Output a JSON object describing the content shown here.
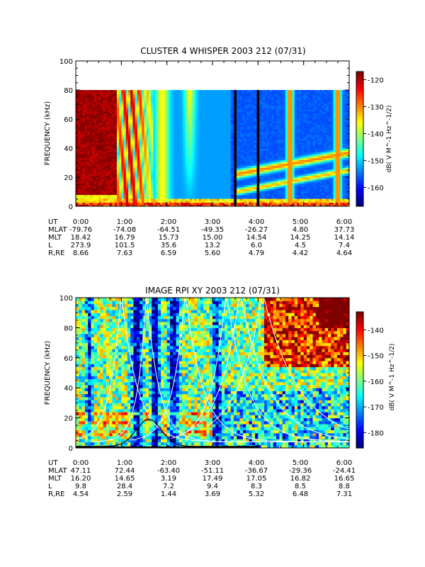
{
  "chart_data": [
    {
      "type": "heatmap",
      "title": "CLUSTER 4 WHISPER 2003 212 (07/31)",
      "ylabel": "FREQUENCY (kHz)",
      "ylim": [
        0,
        100
      ],
      "y_ticks": [
        "0",
        "20",
        "40",
        "60",
        "80",
        "100"
      ],
      "x_ticks": [
        "0:00",
        "1:00",
        "2:00",
        "3:00",
        "4:00",
        "5:00",
        "6:00"
      ],
      "data_top_khz": 80,
      "colorbar": {
        "label": "dB( V M^-1 Hz^-1/2)",
        "ticks": [
          "-120",
          "-130",
          "-140",
          "-150",
          "-160"
        ],
        "range": [
          -167,
          -117
        ]
      },
      "marker_times_hours": [
        3.5,
        4.0
      ],
      "ephemeris": {
        "labels": [
          "UT",
          "MLAT",
          "MLT",
          "L",
          "R,RE"
        ],
        "columns": [
          [
            "0:00",
            "-79.76",
            "18.42",
            "273.9",
            "8.66"
          ],
          [
            "1:00",
            "-74.08",
            "16.79",
            "101.5",
            "7.63"
          ],
          [
            "2:00",
            "-64.51",
            "15.73",
            "35.6",
            "6.59"
          ],
          [
            "3:00",
            "-49.35",
            "15.00",
            "13.2",
            "5.60"
          ],
          [
            "4:00",
            "-26.27",
            "14.54",
            "6.0",
            "4.79"
          ],
          [
            "5:00",
            "4.80",
            "14.25",
            "4.5",
            "4.42"
          ],
          [
            "6:00",
            "37.73",
            "14.14",
            "7.4",
            "4.64"
          ]
        ]
      }
    },
    {
      "type": "heatmap",
      "title": "IMAGE RPI XY 2003 212 (07/31)",
      "ylabel": "FREQUENCY (kHz)",
      "ylim": [
        0,
        100
      ],
      "y_ticks": [
        "0",
        "20",
        "40",
        "60",
        "80",
        "100"
      ],
      "x_ticks": [
        "0:00",
        "1:00",
        "2:00",
        "3:00",
        "4:00",
        "5:00",
        "6:00"
      ],
      "colorbar": {
        "label": "dB( V M^-1 Hz^-1/2)",
        "ticks": [
          "-140",
          "-150",
          "-160",
          "-170",
          "-180"
        ],
        "range": [
          -186,
          -133
        ]
      },
      "peak_curve": {
        "peak_time_hours": 1.6,
        "peak_khz": 18
      },
      "ephemeris": {
        "labels": [
          "UT",
          "MLAT",
          "MLT",
          "L",
          "R,RE"
        ],
        "columns": [
          [
            "0:00",
            "47.11",
            "16.20",
            "9.8",
            "4.54"
          ],
          [
            "1:00",
            "72.44",
            "14.65",
            "28.4",
            "2.59"
          ],
          [
            "2:00",
            "-63.40",
            "3.19",
            "7.2",
            "1.44"
          ],
          [
            "3:00",
            "-51.11",
            "17.49",
            "9.4",
            "3.69"
          ],
          [
            "4:00",
            "-36.67",
            "17.05",
            "8.3",
            "5.32"
          ],
          [
            "5:00",
            "-29.36",
            "16.82",
            "8.5",
            "6.48"
          ],
          [
            "6:00",
            "-24.41",
            "16.65",
            "8.8",
            "7.31"
          ]
        ]
      }
    }
  ]
}
